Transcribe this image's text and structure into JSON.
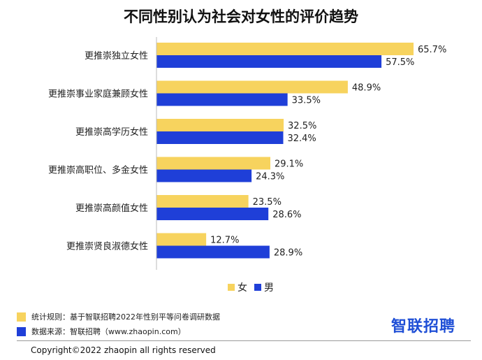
{
  "title": "不同性别认为社会对女性的评价趋势",
  "chart_data": {
    "type": "bar",
    "orientation": "horizontal",
    "categories": [
      "更推崇独立女性",
      "更推崇事业家庭兼顾女性",
      "更推崇高学历女性",
      "更推崇高职位、多金女性",
      "更推崇高颜值女性",
      "更推崇贤良淑德女性"
    ],
    "series": [
      {
        "name": "女",
        "color": "#f7d35e",
        "values": [
          65.7,
          48.9,
          32.5,
          29.1,
          23.5,
          12.7
        ],
        "labels": [
          "65.7%",
          "48.9%",
          "32.5%",
          "29.1%",
          "23.5%",
          "12.7%"
        ]
      },
      {
        "name": "男",
        "color": "#1f3fd8",
        "values": [
          57.5,
          33.5,
          32.4,
          24.3,
          28.6,
          28.9
        ],
        "labels": [
          "57.5%",
          "33.5%",
          "32.4%",
          "24.3%",
          "28.6%",
          "28.9%"
        ]
      }
    ],
    "legend_position": "bottom",
    "grid": false
  },
  "footer": {
    "note1": "统计规则：基于智联招聘2022年性别平等问卷调研数据",
    "note1_color": "#f7d35e",
    "note2": "数据来源：智联招聘（www.zhaopin.com）",
    "note2_color": "#1f3fd8",
    "brand": "智联招聘",
    "copyright": "Copyright©2022 zhaopin all rights reserved"
  }
}
